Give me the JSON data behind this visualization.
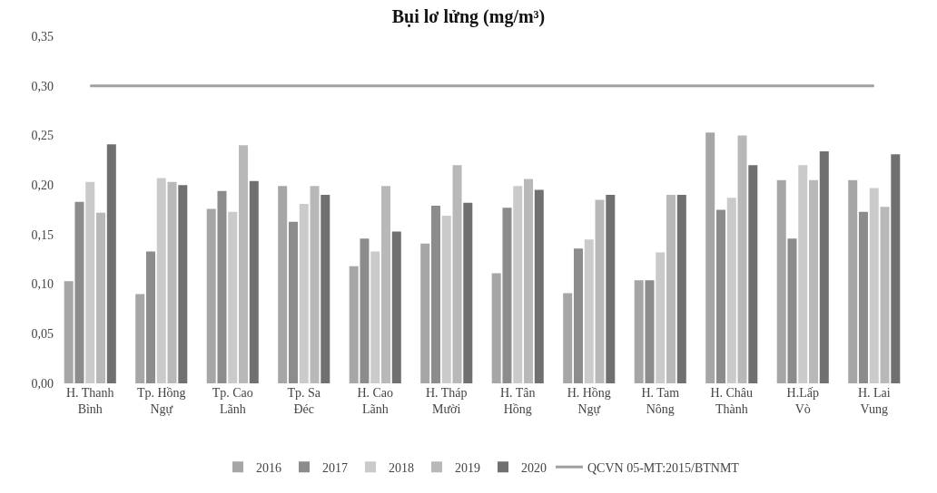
{
  "chart_data": {
    "type": "bar",
    "title": "Bụi lơ lửng (mg/m³)",
    "categories": [
      "H. Thanh Bình",
      "Tp. Hồng Ngự",
      "Tp. Cao Lãnh",
      "Tp. Sa Đéc",
      "H. Cao Lãnh",
      "H. Tháp Mười",
      "H. Tân Hồng",
      "H. Hồng Ngự",
      "H. Tam Nông",
      "H. Châu Thành",
      "H.Lấp Vò",
      "H. Lai Vung"
    ],
    "series": [
      {
        "name": "2016",
        "color": "#a6a6a6",
        "values": [
          0.103,
          0.09,
          0.176,
          0.199,
          0.118,
          0.141,
          0.111,
          0.091,
          0.104,
          0.253,
          0.205,
          0.205
        ]
      },
      {
        "name": "2017",
        "color": "#8c8c8c",
        "values": [
          0.183,
          0.133,
          0.194,
          0.163,
          0.146,
          0.179,
          0.177,
          0.136,
          0.104,
          0.175,
          0.146,
          0.173
        ]
      },
      {
        "name": "2018",
        "color": "#cacaca",
        "values": [
          0.203,
          0.207,
          0.173,
          0.181,
          0.133,
          0.169,
          0.199,
          0.145,
          0.132,
          0.187,
          0.22,
          0.197
        ]
      },
      {
        "name": "2019",
        "color": "#b8b8b8",
        "values": [
          0.172,
          0.203,
          0.24,
          0.199,
          0.199,
          0.22,
          0.206,
          0.185,
          0.19,
          0.25,
          0.205,
          0.178
        ]
      },
      {
        "name": "2020",
        "color": "#707070",
        "values": [
          0.241,
          0.2,
          0.204,
          0.19,
          0.153,
          0.182,
          0.195,
          0.19,
          0.19,
          0.22,
          0.234,
          0.231
        ]
      },
      {
        "name": "QCVN 05-MT:2015/BTNMT",
        "type": "line",
        "color": "#a0a0a0",
        "values": [
          0.3,
          0.3,
          0.3,
          0.3,
          0.3,
          0.3,
          0.3,
          0.3,
          0.3,
          0.3,
          0.3,
          0.3
        ]
      }
    ],
    "ylim": [
      0,
      0.35
    ],
    "yticks": [
      {
        "value": 0,
        "label": "0,00"
      },
      {
        "value": 0.05,
        "label": "0,05"
      },
      {
        "value": 0.1,
        "label": "0,10"
      },
      {
        "value": 0.15,
        "label": "0,15"
      },
      {
        "value": 0.2,
        "label": "0,20"
      },
      {
        "value": 0.25,
        "label": "0,25"
      },
      {
        "value": 0.3,
        "label": "0,30"
      },
      {
        "value": 0.35,
        "label": "0,35"
      }
    ],
    "legend": "bottom"
  }
}
